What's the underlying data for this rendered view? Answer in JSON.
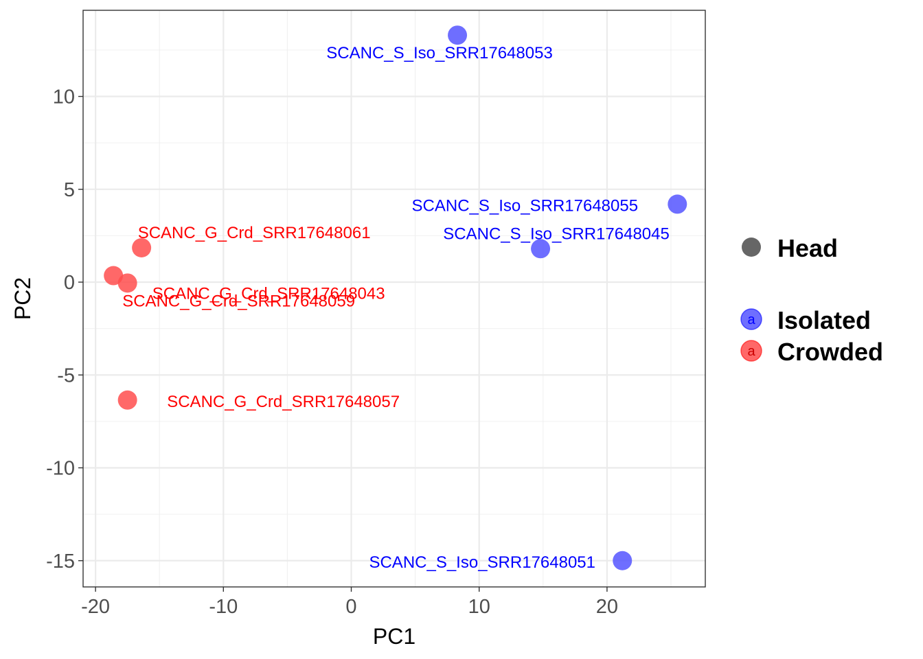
{
  "chart_data": {
    "type": "scatter",
    "xlabel": "PC1",
    "ylabel": "PC2",
    "xlim": [
      -20.5,
      27.5
    ],
    "ylim": [
      -16.5,
      14.5
    ],
    "x_ticks": [
      -20,
      -10,
      0,
      10,
      20
    ],
    "x_tick_labels": [
      "-20",
      "-10",
      "0",
      "10",
      "20"
    ],
    "y_ticks": [
      -15,
      -10,
      -5,
      0,
      5,
      10
    ],
    "y_tick_labels": [
      "-15",
      "-10",
      "-5",
      "0",
      "5",
      "10"
    ],
    "grid": true,
    "colors": {
      "Isolated": "#5555ff",
      "Crowded": "#ff4d4d",
      "Isolated_text": "#0000ff",
      "Crowded_text": "#ff0000",
      "shape_key": "#666666"
    },
    "series": [
      {
        "name": "Isolated",
        "points": [
          {
            "label": "SCANC_S_Iso_SRR17648053",
            "x": 8.3,
            "y": 13.3
          },
          {
            "label": "SCANC_S_Iso_SRR17648055",
            "x": 25.5,
            "y": 4.2
          },
          {
            "label": "SCANC_S_Iso_SRR17648045",
            "x": 14.8,
            "y": 1.8
          },
          {
            "label": "SCANC_S_Iso_SRR17648051",
            "x": 21.2,
            "y": -15.0
          }
        ]
      },
      {
        "name": "Crowded",
        "points": [
          {
            "label": "SCANC_G_Crd_SRR17648061",
            "x": -16.4,
            "y": 1.85
          },
          {
            "label": "SCANC_G_Crd_SRR17648043",
            "x": -18.6,
            "y": 0.35
          },
          {
            "label": "SCANC_G_Crd_SRR17648059",
            "x": -17.5,
            "y": -0.05
          },
          {
            "label": "SCANC_G_Crd_SRR17648057",
            "x": -17.5,
            "y": -6.35
          }
        ]
      }
    ],
    "legend": {
      "position": "right",
      "shape_entry": "Head",
      "color_entries": [
        "Isolated",
        "Crowded"
      ],
      "key_glyph": "a"
    }
  }
}
